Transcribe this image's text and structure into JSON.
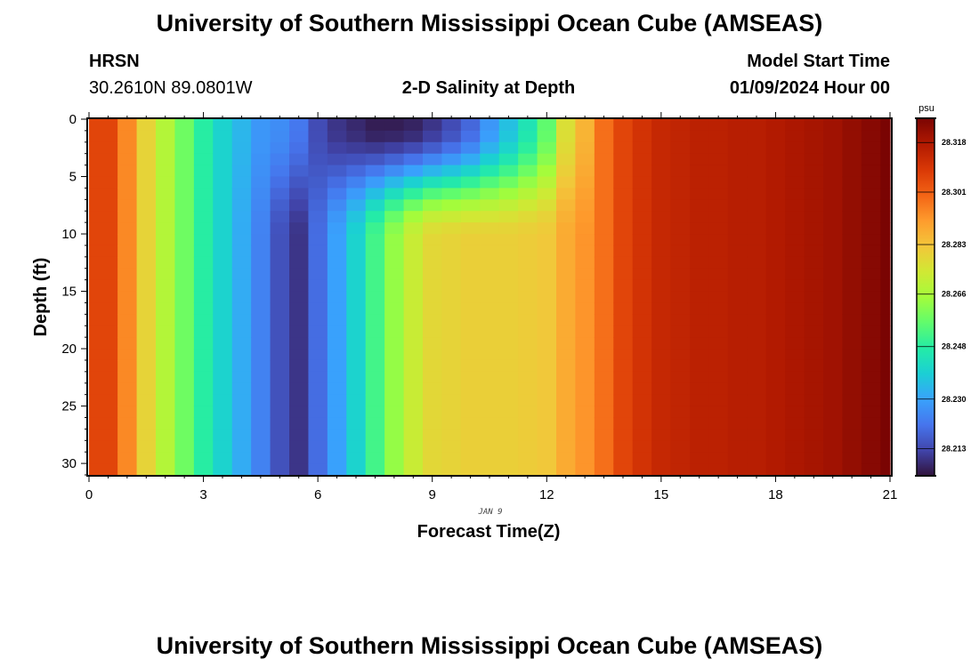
{
  "header": {
    "title": "University of Southern Mississippi Ocean Cube (AMSEAS)",
    "station": "HRSN",
    "coords": "30.2610N  89.0801W",
    "subtitle": "2-D Salinity at Depth",
    "model_start_label": "Model Start Time",
    "model_start_value": "01/09/2024 Hour 00"
  },
  "footer": {
    "title": "University of Southern Mississippi Ocean Cube (AMSEAS)"
  },
  "chart_data": {
    "type": "heatmap",
    "title": "2-D Salinity at Depth",
    "xlabel": "Forecast Time(Z)",
    "ylabel": "Depth (ft)",
    "date_label": "JAN 9",
    "xlim": [
      0,
      21
    ],
    "ylim": [
      31,
      0
    ],
    "x_ticks": [
      0,
      3,
      6,
      9,
      12,
      15,
      18,
      21
    ],
    "y_ticks": [
      0,
      5,
      10,
      15,
      20,
      25,
      30
    ],
    "colorbar": {
      "unit_label": "psu",
      "range": [
        28.204,
        28.326
      ],
      "ticks": [
        28.213,
        28.23,
        28.248,
        28.266,
        28.283,
        28.301,
        28.318
      ],
      "tick_labels": [
        "28.213",
        "28.230",
        "28.248",
        "28.266",
        "28.283",
        "28.301",
        "28.318"
      ],
      "colormap": [
        "#30123b",
        "#4145ab",
        "#4675ed",
        "#39a2fc",
        "#1bcfd4",
        "#24eca6",
        "#61fc6c",
        "#a4fc3b",
        "#d1e834",
        "#f3c63a",
        "#fe9b2d",
        "#f36315",
        "#d93806",
        "#b11901",
        "#7a0403"
      ]
    },
    "columns": [
      {
        "x_start": 0,
        "x_end": 0.75,
        "surface": 28.306,
        "deep": 28.306
      },
      {
        "x_start": 0.75,
        "x_end": 1.25,
        "surface": 28.294,
        "deep": 28.294
      },
      {
        "x_start": 1.25,
        "x_end": 1.75,
        "surface": 28.279,
        "deep": 28.279
      },
      {
        "x_start": 1.75,
        "x_end": 2.25,
        "surface": 28.268,
        "deep": 28.268
      },
      {
        "x_start": 2.25,
        "x_end": 2.75,
        "surface": 28.258,
        "deep": 28.258
      },
      {
        "x_start": 2.75,
        "x_end": 3.25,
        "surface": 28.248,
        "deep": 28.248
      },
      {
        "x_start": 3.25,
        "x_end": 3.75,
        "surface": 28.24,
        "deep": 28.24
      },
      {
        "x_start": 3.75,
        "x_end": 4.25,
        "surface": 28.234,
        "deep": 28.232
      },
      {
        "x_start": 4.25,
        "x_end": 4.75,
        "surface": 28.228,
        "deep": 28.224
      },
      {
        "x_start": 4.75,
        "x_end": 5.25,
        "surface": 28.226,
        "deep": 28.215
      },
      {
        "x_start": 5.25,
        "x_end": 5.75,
        "surface": 28.222,
        "deep": 28.21
      },
      {
        "x_start": 5.75,
        "x_end": 6.25,
        "surface": 28.214,
        "deep": 28.22
      },
      {
        "x_start": 6.25,
        "x_end": 6.75,
        "surface": 28.21,
        "deep": 28.23
      },
      {
        "x_start": 6.75,
        "x_end": 7.25,
        "surface": 28.208,
        "deep": 28.24
      },
      {
        "x_start": 7.25,
        "x_end": 7.75,
        "surface": 28.206,
        "deep": 28.252
      },
      {
        "x_start": 7.75,
        "x_end": 8.25,
        "surface": 28.206,
        "deep": 28.263
      },
      {
        "x_start": 8.25,
        "x_end": 8.75,
        "surface": 28.207,
        "deep": 28.272
      },
      {
        "x_start": 8.75,
        "x_end": 9.25,
        "surface": 28.21,
        "deep": 28.278
      },
      {
        "x_start": 9.25,
        "x_end": 9.75,
        "surface": 28.214,
        "deep": 28.279
      },
      {
        "x_start": 9.75,
        "x_end": 10.25,
        "surface": 28.219,
        "deep": 28.28
      },
      {
        "x_start": 10.25,
        "x_end": 10.75,
        "surface": 28.228,
        "deep": 28.28
      },
      {
        "x_start": 10.75,
        "x_end": 11.25,
        "surface": 28.236,
        "deep": 28.28
      },
      {
        "x_start": 11.25,
        "x_end": 11.75,
        "surface": 28.245,
        "deep": 28.281
      },
      {
        "x_start": 11.75,
        "x_end": 12.25,
        "surface": 28.256,
        "deep": 28.282
      },
      {
        "x_start": 12.25,
        "x_end": 12.75,
        "surface": 28.276,
        "deep": 28.288
      },
      {
        "x_start": 12.75,
        "x_end": 13.25,
        "surface": 28.286,
        "deep": 28.292
      },
      {
        "x_start": 13.25,
        "x_end": 13.75,
        "surface": 28.298,
        "deep": 28.298
      },
      {
        "x_start": 13.75,
        "x_end": 14.25,
        "surface": 28.306,
        "deep": 28.306
      },
      {
        "x_start": 14.25,
        "x_end": 14.75,
        "surface": 28.31,
        "deep": 28.31
      },
      {
        "x_start": 14.75,
        "x_end": 15.25,
        "surface": 28.313,
        "deep": 28.313
      },
      {
        "x_start": 15.25,
        "x_end": 15.75,
        "surface": 28.314,
        "deep": 28.314
      },
      {
        "x_start": 15.75,
        "x_end": 16.25,
        "surface": 28.315,
        "deep": 28.315
      },
      {
        "x_start": 16.25,
        "x_end": 16.75,
        "surface": 28.315,
        "deep": 28.315
      },
      {
        "x_start": 16.75,
        "x_end": 17.25,
        "surface": 28.316,
        "deep": 28.316
      },
      {
        "x_start": 17.25,
        "x_end": 17.75,
        "surface": 28.316,
        "deep": 28.316
      },
      {
        "x_start": 17.75,
        "x_end": 18.25,
        "surface": 28.317,
        "deep": 28.317
      },
      {
        "x_start": 18.25,
        "x_end": 18.75,
        "surface": 28.318,
        "deep": 28.318
      },
      {
        "x_start": 18.75,
        "x_end": 19.25,
        "surface": 28.319,
        "deep": 28.319
      },
      {
        "x_start": 19.25,
        "x_end": 19.75,
        "surface": 28.32,
        "deep": 28.32
      },
      {
        "x_start": 19.75,
        "x_end": 20.25,
        "surface": 28.322,
        "deep": 28.322
      },
      {
        "x_start": 20.25,
        "x_end": 20.75,
        "surface": 28.324,
        "deep": 28.324
      },
      {
        "x_start": 20.75,
        "x_end": 21,
        "surface": 28.326,
        "deep": 28.326
      }
    ],
    "depth_transition_ft": [
      0,
      1,
      2,
      3,
      4,
      5,
      6,
      7,
      8,
      9,
      10
    ]
  }
}
